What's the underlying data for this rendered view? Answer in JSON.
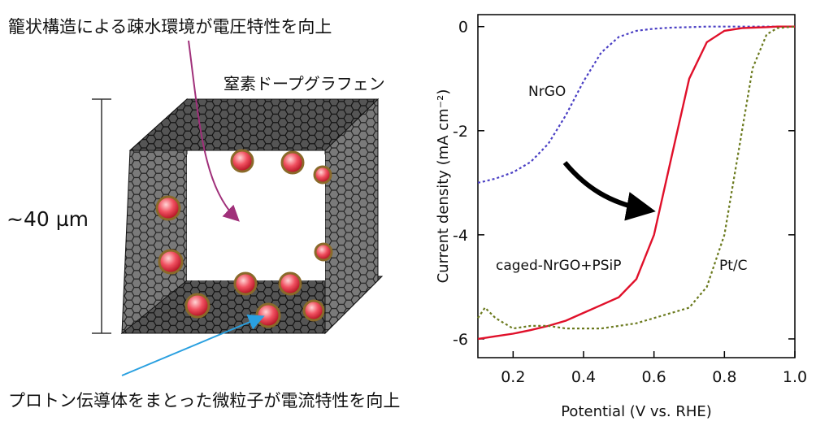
{
  "diagram": {
    "title": "籠状構造による疎水環境が電圧特性を向上",
    "top_label": "窒素ドープグラフェン",
    "size_label": "~40 µm",
    "bottom_label": "プロトン伝導体をまとった微粒子が電流特性を向上"
  },
  "chart_data": {
    "type": "line",
    "xlabel": "Potential (V vs. RHE)",
    "ylabel": "Current density (mA cm⁻²)",
    "x": [
      0.1,
      0.12,
      0.15,
      0.2,
      0.25,
      0.3,
      0.35,
      0.4,
      0.45,
      0.5,
      0.55,
      0.6,
      0.65,
      0.7,
      0.75,
      0.8,
      0.85,
      0.88,
      0.92,
      0.95,
      1.0
    ],
    "series": [
      {
        "name": "NrGO",
        "color": "#4a3fc4",
        "style": "dotted",
        "values": [
          -3.0,
          -2.97,
          -2.92,
          -2.8,
          -2.6,
          -2.25,
          -1.7,
          -1.05,
          -0.5,
          -0.2,
          -0.08,
          -0.04,
          -0.02,
          -0.01,
          0,
          0,
          0,
          0,
          0,
          0,
          0
        ]
      },
      {
        "name": "caged-NrGO+PSiP",
        "color": "#e0102a",
        "style": "solid",
        "values": [
          -6.0,
          -5.98,
          -5.95,
          -5.9,
          -5.83,
          -5.75,
          -5.65,
          -5.5,
          -5.35,
          -5.2,
          -4.85,
          -4.0,
          -2.5,
          -1.0,
          -0.3,
          -0.08,
          -0.03,
          -0.02,
          -0.01,
          0,
          0
        ]
      },
      {
        "name": "Pt/C",
        "color": "#6b7a1e",
        "style": "dotted",
        "values": [
          -5.6,
          -5.4,
          -5.6,
          -5.8,
          -5.75,
          -5.75,
          -5.8,
          -5.8,
          -5.8,
          -5.75,
          -5.7,
          -5.6,
          -5.5,
          -5.4,
          -5.0,
          -4.0,
          -2.0,
          -0.8,
          -0.15,
          -0.03,
          0
        ]
      }
    ],
    "xlim": [
      0.1,
      1.0
    ],
    "xticks": [
      0.2,
      0.4,
      0.6,
      0.8,
      {
        "value": 1.0,
        "label": "1.0"
      }
    ],
    "ylim": [
      -6.36,
      0.23
    ],
    "yticks": [
      0,
      -2,
      -4,
      -6
    ]
  }
}
